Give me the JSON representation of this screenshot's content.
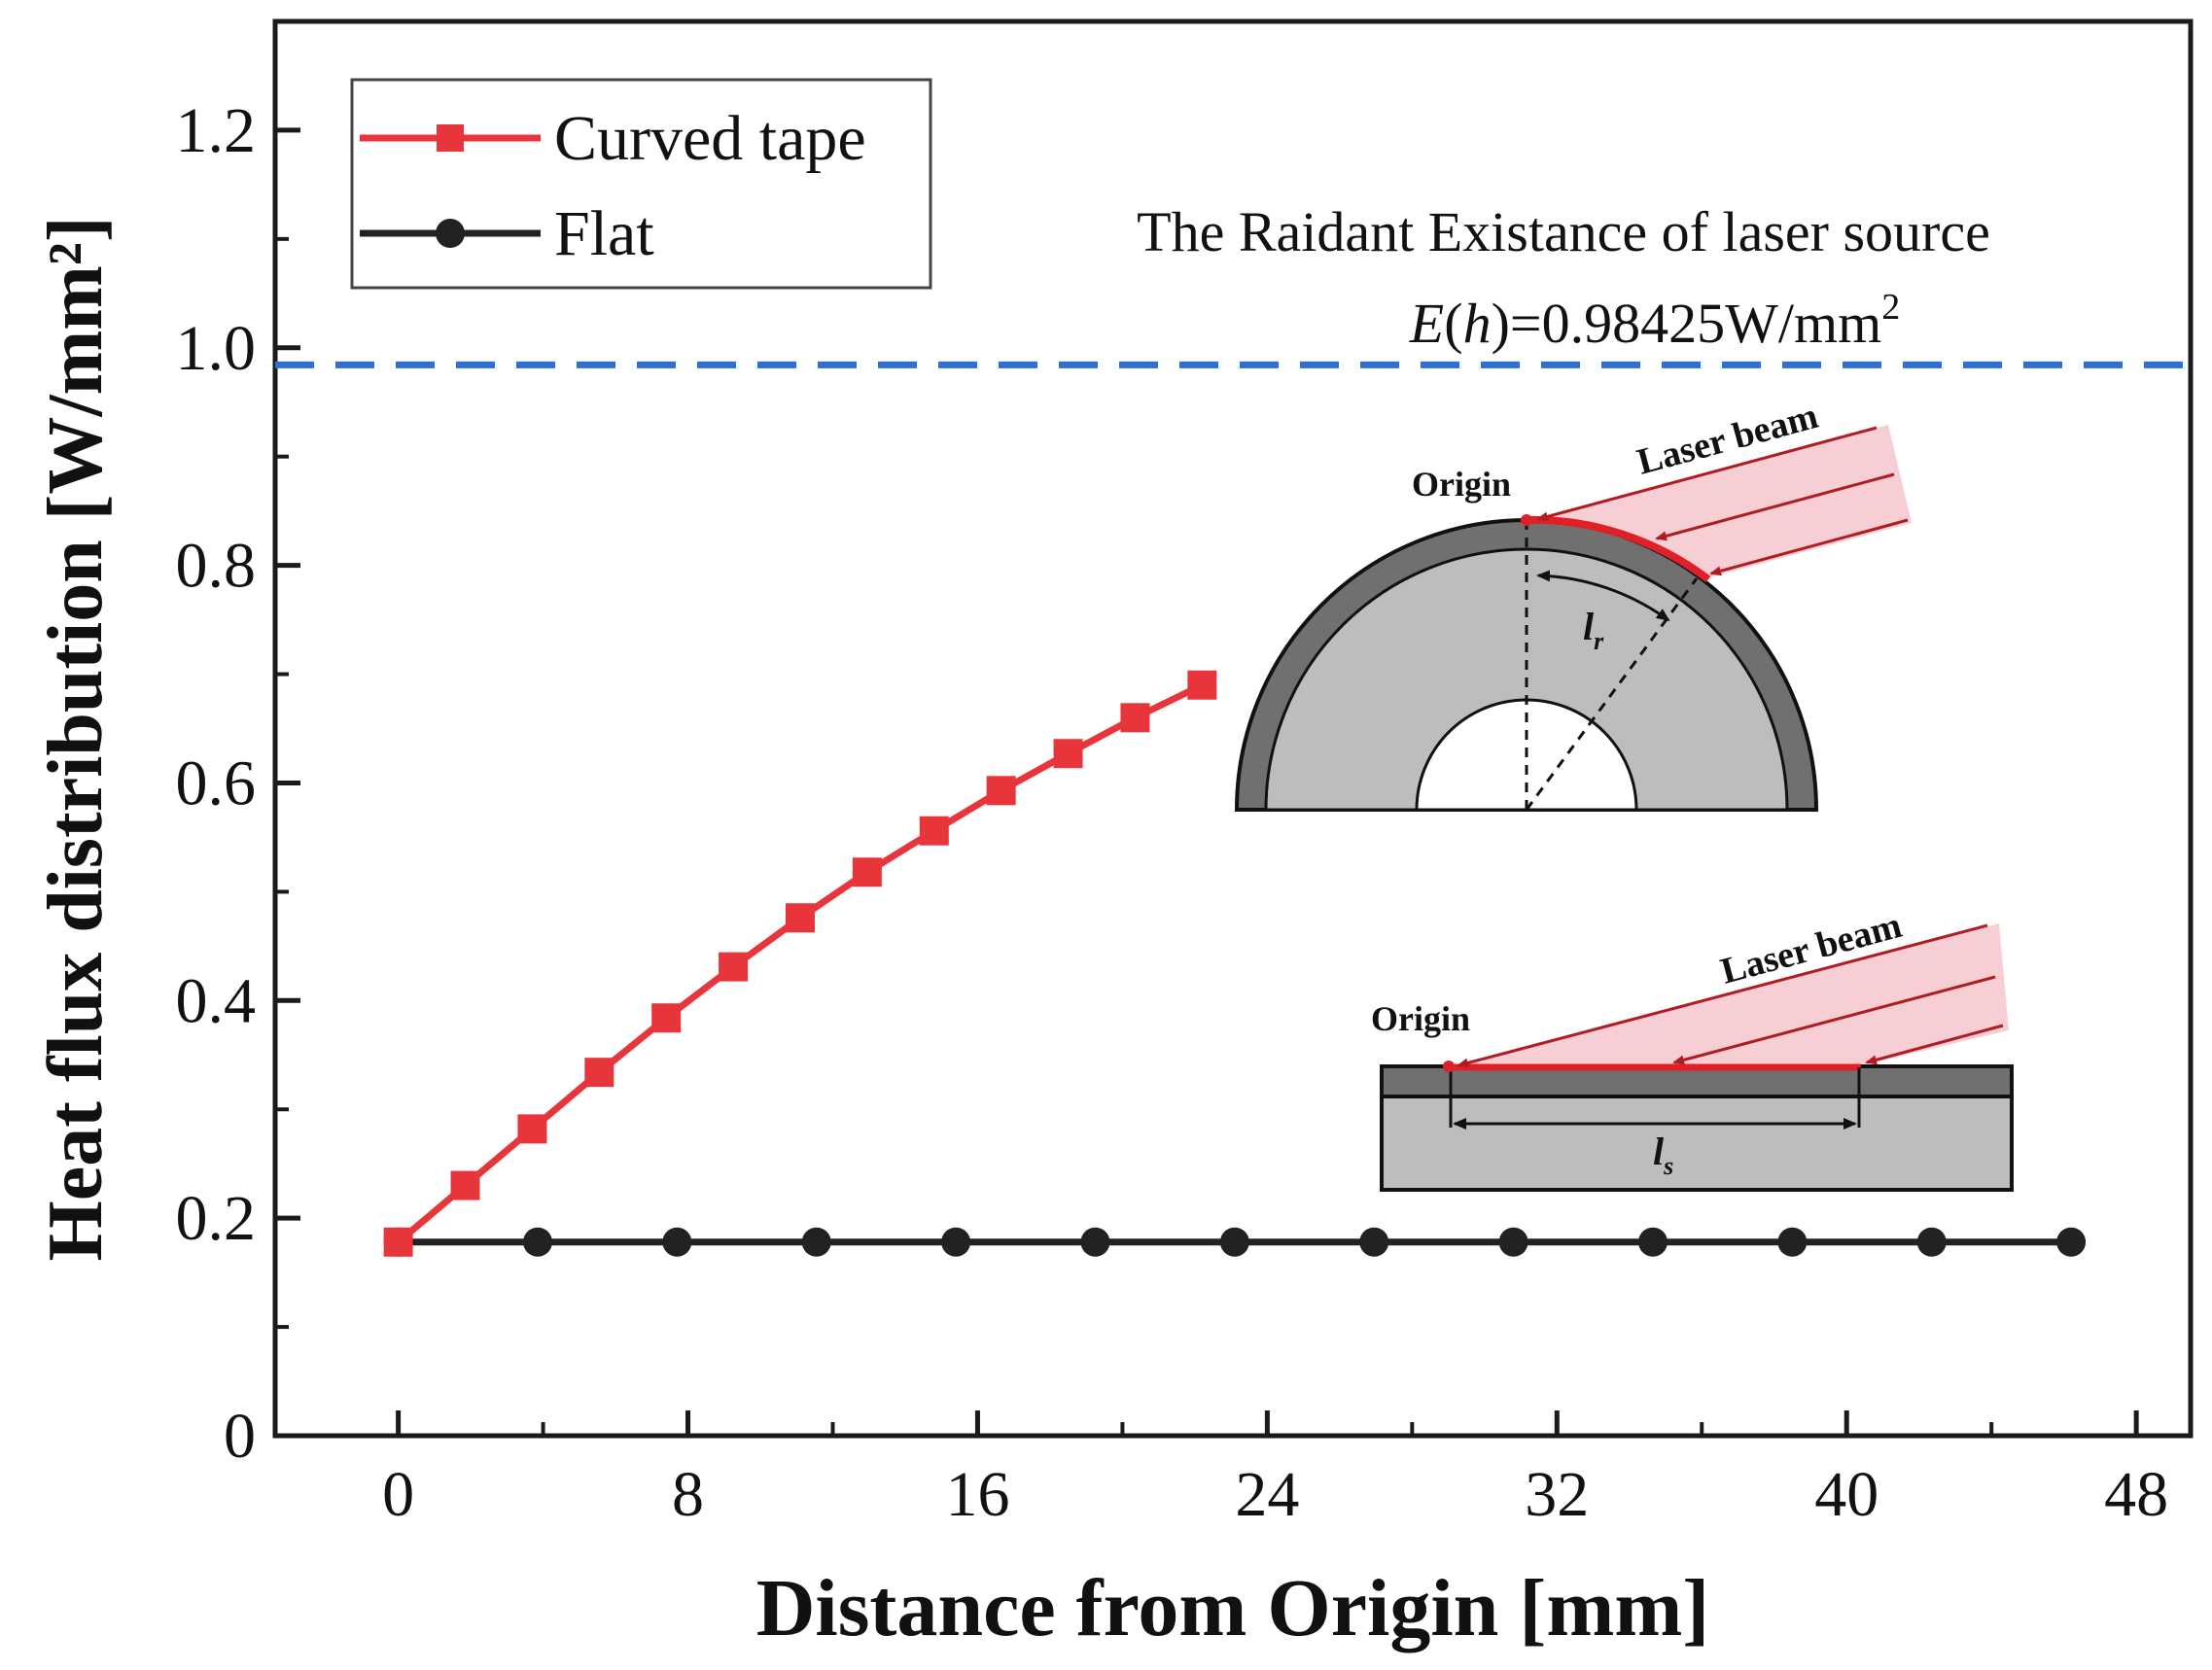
{
  "chart_data": {
    "type": "line",
    "xlabel": "Distance from Origin [mm]",
    "ylabel": "Heat flux distribution [W/mm²]",
    "xlim": [
      -3.4,
      49.5
    ],
    "ylim": [
      0,
      1.3
    ],
    "x_ticks": [
      0,
      8,
      16,
      24,
      32,
      40,
      48
    ],
    "x_tick_labels": [
      "0",
      "8",
      "16",
      "24",
      "32",
      "40",
      "48"
    ],
    "y_ticks": [
      0,
      0.2,
      0.4,
      0.6,
      0.8,
      1.0,
      1.2
    ],
    "y_tick_labels": [
      "0",
      "0.2",
      "0.4",
      "0.6",
      "0.8",
      "1.0",
      "1.2"
    ],
    "grid": false,
    "legend_position": "top-left",
    "series": [
      {
        "name": "Curved tape",
        "color": "#e8353b",
        "marker": "square",
        "x": [
          0,
          1.85,
          3.7,
          5.55,
          7.4,
          9.25,
          11.1,
          12.95,
          14.8,
          16.65,
          18.5,
          20.35,
          22.2
        ],
        "y": [
          0.178,
          0.23,
          0.282,
          0.334,
          0.384,
          0.431,
          0.476,
          0.518,
          0.556,
          0.593,
          0.627,
          0.66,
          0.69
        ]
      },
      {
        "name": "Flat",
        "color": "#222222",
        "marker": "circle",
        "x": [
          0,
          3.85,
          7.7,
          11.55,
          15.4,
          19.25,
          23.1,
          26.95,
          30.8,
          34.65,
          38.5,
          42.35,
          46.2
        ],
        "y": [
          0.178,
          0.178,
          0.178,
          0.178,
          0.178,
          0.178,
          0.178,
          0.178,
          0.178,
          0.178,
          0.178,
          0.178,
          0.178
        ]
      }
    ],
    "reference_line": {
      "y": 0.98425,
      "color": "#2f6fd0",
      "style": "dashed"
    },
    "annotation": {
      "line1": "The Raidant Existance of laser source",
      "line2_prefix": "E",
      "line2_paren_open": "(",
      "line2_var": "h",
      "line2_paren_close": ")",
      "line2_value": "=0.98425W/mm",
      "line2_sup": "2"
    },
    "insets": {
      "curved": {
        "origin_label": "Origin",
        "beam_label": "Laser beam",
        "length_label": "l",
        "length_subscript": "r"
      },
      "flat": {
        "origin_label": "Origin",
        "beam_label": "Laser beam",
        "length_label": "l",
        "length_subscript": "s"
      }
    }
  }
}
